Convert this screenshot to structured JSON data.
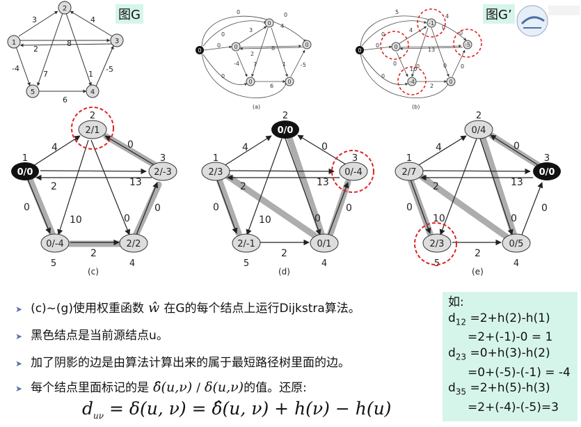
{
  "labels": {
    "g": "图G",
    "gprime": "图G’"
  },
  "captions": {
    "a": "(a)",
    "b": "(b)",
    "c": "(c)",
    "d": "(d)",
    "e": "(e)"
  },
  "graph_g": {
    "nodes": [
      "1",
      "2",
      "3",
      "4",
      "5"
    ],
    "edges": [
      {
        "from": "1",
        "to": "2",
        "w": "3"
      },
      {
        "from": "3",
        "to": "2",
        "w": "4"
      },
      {
        "from": "1",
        "to": "3",
        "w": "8"
      },
      {
        "from": "2",
        "to": "4",
        "w": "1"
      },
      {
        "from": "2",
        "to": "5",
        "w": "7"
      },
      {
        "from": "3",
        "to": "1",
        "w": "2"
      },
      {
        "from": "1",
        "to": "5",
        "w": "-4"
      },
      {
        "from": "4",
        "to": "3",
        "w": "-5"
      },
      {
        "from": "5",
        "to": "4",
        "w": "6"
      }
    ]
  },
  "graph_a": {
    "nodes": [
      "0",
      "0",
      "0",
      "0",
      "0",
      "0"
    ],
    "weights": [
      "0",
      "0",
      "3",
      "4",
      "8",
      "1",
      "7",
      "2",
      "-4",
      "-5",
      "6",
      "0",
      "0",
      "0"
    ]
  },
  "graph_b": {
    "nodes": [
      "0",
      "0",
      "-1",
      "-5",
      "-4",
      "0"
    ],
    "weights": [
      "5",
      "0",
      "4",
      "0",
      "13",
      "0",
      "0",
      "10",
      "0",
      "0",
      "2",
      "0",
      "0",
      "4",
      "0"
    ]
  },
  "panel_c": {
    "nodes": [
      "0/0",
      "2/1",
      "2/-3",
      "2/2",
      "0/-4"
    ],
    "ids": [
      "1",
      "2",
      "3",
      "4",
      "5"
    ],
    "weights": [
      "4",
      "0",
      "13",
      "2",
      "0",
      "10",
      "0",
      "0",
      "2"
    ]
  },
  "panel_d": {
    "nodes": [
      "2/3",
      "0/0",
      "0/-4",
      "0/1",
      "2/-1"
    ],
    "ids": [
      "1",
      "2",
      "3",
      "4",
      "5"
    ],
    "weights": [
      "4",
      "0",
      "13",
      "2",
      "0",
      "10",
      "0",
      "0",
      "2"
    ]
  },
  "panel_e": {
    "nodes": [
      "2/7",
      "0/4",
      "0/0",
      "0/5",
      "2/3"
    ],
    "ids": [
      "1",
      "2",
      "3",
      "4",
      "5"
    ],
    "weights": [
      "4",
      "0",
      "13",
      "2",
      "0",
      "10",
      "0",
      "0",
      "2"
    ]
  },
  "bullets": [
    "(c)~(g)使用权重函数",
    "在G的每个结点上运行Dijkstra算法。",
    "黑色结点是当前源结点u。",
    "加了阴影的边是由算法计算出来的属于最短路径树里面的边。",
    "每个结点里面标记的是",
    "/",
    "的值。还原:"
  ],
  "formula": "d_uv = δ(u,v) = δ̂(u,v) + h(v) − h(u)",
  "example": {
    "title": "如:",
    "d12_label": "d",
    "d12_sub": "12",
    "d12_line1": "=2+h(2)-h(1)",
    "d12_line2": "=2+(-1)-0 = 1",
    "d23_sub": "23",
    "d23_line1": "=0+h(3)-h(2)",
    "d23_line2": "=0+(-5)-(-1) = -4",
    "d35_sub": "35",
    "d35_line1": "=2+h(5)-h(3)",
    "d35_line2": "=2+(-4)-(-5)=3"
  }
}
